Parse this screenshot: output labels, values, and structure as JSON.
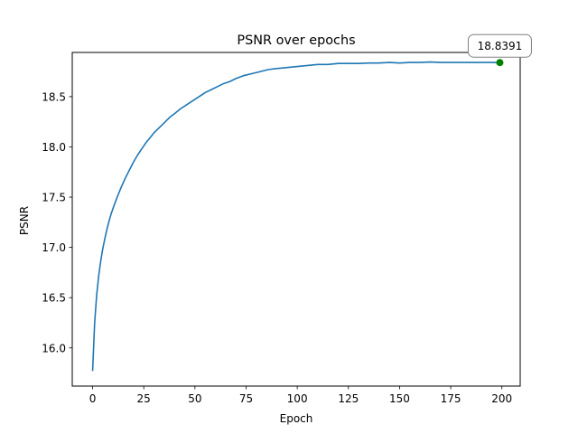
{
  "chart_data": {
    "type": "line",
    "title": "PSNR over epochs",
    "xlabel": "Epoch",
    "ylabel": "PSNR",
    "xlim": [
      -9.95,
      208.95
    ],
    "ylim": [
      15.62,
      18.94
    ],
    "xticks": [
      0,
      25,
      50,
      75,
      100,
      125,
      150,
      175,
      200
    ],
    "yticks": [
      16.0,
      16.5,
      17.0,
      17.5,
      18.0,
      18.5
    ],
    "ytick_labels": [
      "16.0",
      "16.5",
      "17.0",
      "17.5",
      "18.0",
      "18.5"
    ],
    "grid": false,
    "series": [
      {
        "color": "#1f77b4",
        "x": [
          0,
          1,
          2,
          3,
          4,
          5,
          6,
          7,
          8,
          9,
          10,
          12,
          14,
          16,
          18,
          20,
          22,
          24,
          26,
          28,
          30,
          32,
          34,
          36,
          38,
          40,
          43,
          46,
          49,
          52,
          55,
          58,
          61,
          64,
          67,
          70,
          74,
          78,
          82,
          86,
          90,
          95,
          100,
          105,
          110,
          115,
          120,
          125,
          130,
          135,
          140,
          145,
          150,
          155,
          160,
          165,
          170,
          175,
          180,
          185,
          190,
          195,
          199
        ],
        "y": [
          15.77,
          16.25,
          16.53,
          16.72,
          16.87,
          16.99,
          17.09,
          17.18,
          17.26,
          17.33,
          17.39,
          17.5,
          17.6,
          17.69,
          17.77,
          17.85,
          17.92,
          17.98,
          18.04,
          18.09,
          18.14,
          18.18,
          18.22,
          18.26,
          18.3,
          18.33,
          18.38,
          18.42,
          18.46,
          18.5,
          18.54,
          18.57,
          18.6,
          18.63,
          18.65,
          18.68,
          18.71,
          18.73,
          18.75,
          18.77,
          18.78,
          18.79,
          18.8,
          18.81,
          18.82,
          18.82,
          18.83,
          18.83,
          18.83,
          18.835,
          18.835,
          18.84,
          18.835,
          18.84,
          18.84,
          18.845,
          18.84,
          18.84,
          18.84,
          18.84,
          18.84,
          18.84,
          18.8391
        ]
      }
    ],
    "highlight": {
      "x": 199,
      "y": 18.8391,
      "label": "18.8391",
      "color": "#008000"
    }
  }
}
